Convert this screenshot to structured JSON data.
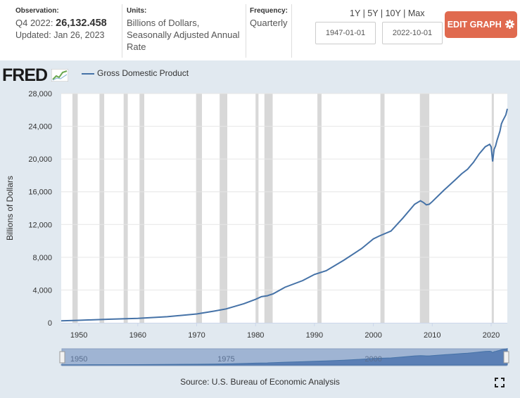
{
  "observation": {
    "label": "Observation:",
    "period": "Q4 2022:",
    "value": "26,132.458",
    "updated": "Updated: Jan 26, 2023"
  },
  "units": {
    "label": "Units:",
    "value": "Billions of Dollars, Seasonally Adjusted Annual Rate"
  },
  "frequency": {
    "label": "Frequency:",
    "value": "Quarterly"
  },
  "ranges": [
    "1Y",
    "5Y",
    "10Y",
    "Max"
  ],
  "range_separator": "|",
  "date_start": "1947-01-01",
  "date_end": "2022-10-01",
  "edit_button": "EDIT GRAPH",
  "logo": "FRED",
  "source": "Source: U.S. Bureau of Economic Analysis",
  "navigator_labels": [
    "1950",
    "1975",
    "2000"
  ],
  "colors": {
    "line": "#4572a7",
    "recession": "#d8d8d8",
    "button": "#e06a4f",
    "background": "#e1e9f0"
  },
  "chart_data": {
    "type": "line",
    "title": "",
    "series": [
      {
        "name": "Gross Domestic Product"
      }
    ],
    "ylabel": "Billions of Dollars",
    "xlabel": "",
    "ylim": [
      0,
      28000
    ],
    "xlim": [
      1947,
      2022.75
    ],
    "yticks": [
      0,
      4000,
      8000,
      12000,
      16000,
      20000,
      24000,
      28000
    ],
    "yticklabels": [
      "0",
      "4,000",
      "8,000",
      "12,000",
      "16,000",
      "20,000",
      "24,000",
      "28,000"
    ],
    "xticks": [
      1950,
      1960,
      1970,
      1980,
      1990,
      2000,
      2010,
      2020
    ],
    "recessions": [
      [
        1948.9,
        1949.8
      ],
      [
        1953.5,
        1954.3
      ],
      [
        1957.6,
        1958.3
      ],
      [
        1960.3,
        1961.1
      ],
      [
        1969.9,
        1970.9
      ],
      [
        1973.9,
        1975.2
      ],
      [
        1980.0,
        1980.5
      ],
      [
        1981.5,
        1982.9
      ],
      [
        1990.5,
        1991.2
      ],
      [
        2001.2,
        2001.9
      ],
      [
        2007.9,
        2009.5
      ],
      [
        2020.1,
        2020.3
      ]
    ],
    "points": [
      [
        1947,
        243
      ],
      [
        1950,
        300
      ],
      [
        1955,
        426
      ],
      [
        1960,
        542
      ],
      [
        1965,
        742
      ],
      [
        1970,
        1073
      ],
      [
        1973,
        1425
      ],
      [
        1975,
        1690
      ],
      [
        1978,
        2330
      ],
      [
        1980,
        2862
      ],
      [
        1981,
        3190
      ],
      [
        1982,
        3300
      ],
      [
        1983,
        3540
      ],
      [
        1985,
        4340
      ],
      [
        1988,
        5150
      ],
      [
        1990,
        5900
      ],
      [
        1992,
        6360
      ],
      [
        1995,
        7640
      ],
      [
        1998,
        9060
      ],
      [
        2000,
        10250
      ],
      [
        2001,
        10600
      ],
      [
        2003,
        11200
      ],
      [
        2005,
        12770
      ],
      [
        2007,
        14470
      ],
      [
        2008,
        14900
      ],
      [
        2008.5,
        14700
      ],
      [
        2009,
        14400
      ],
      [
        2009.5,
        14480
      ],
      [
        2010,
        14800
      ],
      [
        2012,
        16200
      ],
      [
        2014,
        17520
      ],
      [
        2015,
        18200
      ],
      [
        2016,
        18750
      ],
      [
        2017,
        19600
      ],
      [
        2018,
        20650
      ],
      [
        2019,
        21500
      ],
      [
        2019.75,
        21800
      ],
      [
        2020,
        21480
      ],
      [
        2020.25,
        19700
      ],
      [
        2020.5,
        21180
      ],
      [
        2020.75,
        21600
      ],
      [
        2021,
        22300
      ],
      [
        2021.5,
        23400
      ],
      [
        2021.75,
        24300
      ],
      [
        2022,
        24700
      ],
      [
        2022.5,
        25400
      ],
      [
        2022.75,
        26132
      ]
    ]
  }
}
